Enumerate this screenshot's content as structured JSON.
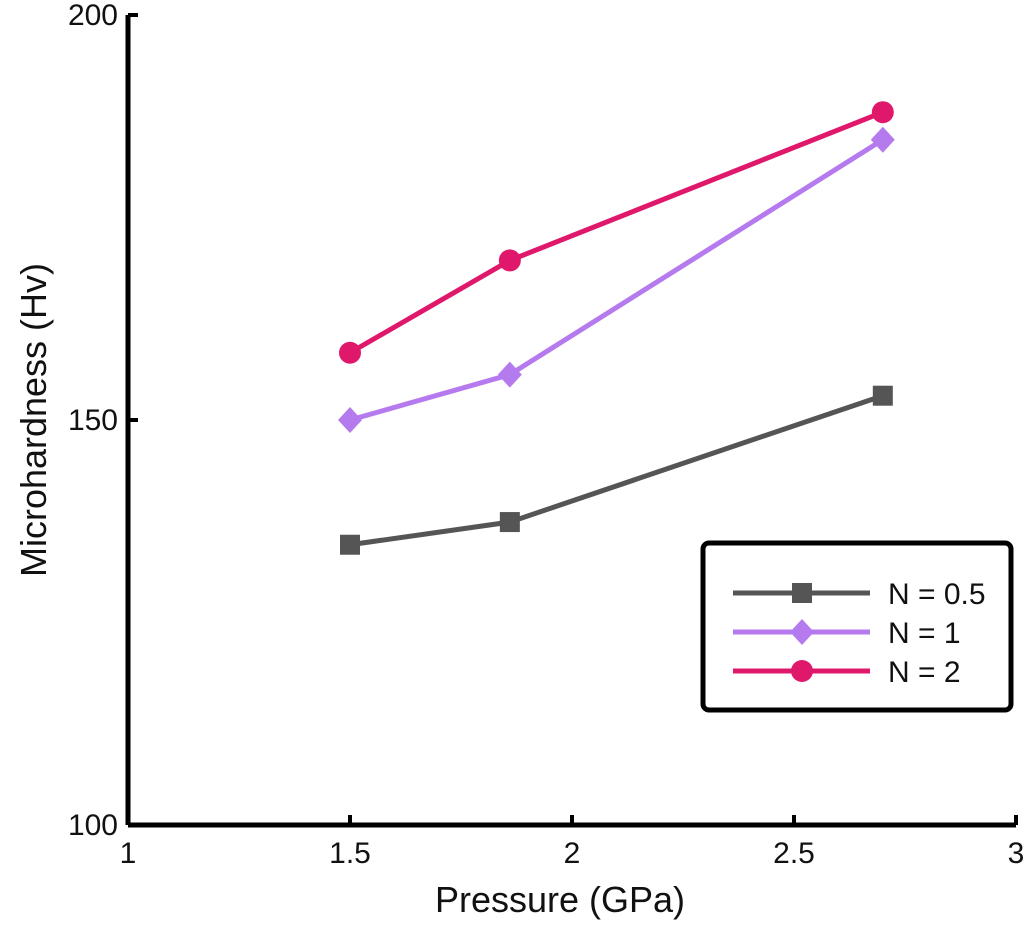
{
  "chart_data": {
    "type": "line",
    "title": "",
    "xlabel": "Pressure (GPa)",
    "ylabel": "Microhardness (Hv)",
    "xlim": [
      1,
      3
    ],
    "ylim": [
      100,
      200
    ],
    "xticks": [
      "1",
      "1.5",
      "2",
      "2.5",
      "3"
    ],
    "yticks": [
      "100",
      "150",
      "200"
    ],
    "legend_position": "lower-right",
    "series": [
      {
        "name": "N = 0.5",
        "color": "#555555",
        "marker": "square",
        "x": [
          1.5,
          1.86,
          2.7
        ],
        "y": [
          134.6,
          137.4,
          153.0
        ]
      },
      {
        "name": "N = 1",
        "color": "#b57bee",
        "marker": "diamond",
        "x": [
          1.5,
          1.86,
          2.7
        ],
        "y": [
          150.0,
          155.6,
          184.6
        ]
      },
      {
        "name": "N = 2",
        "color": "#e0186c",
        "marker": "circle",
        "x": [
          1.5,
          1.86,
          2.7
        ],
        "y": [
          158.3,
          169.7,
          188.0
        ]
      }
    ]
  }
}
